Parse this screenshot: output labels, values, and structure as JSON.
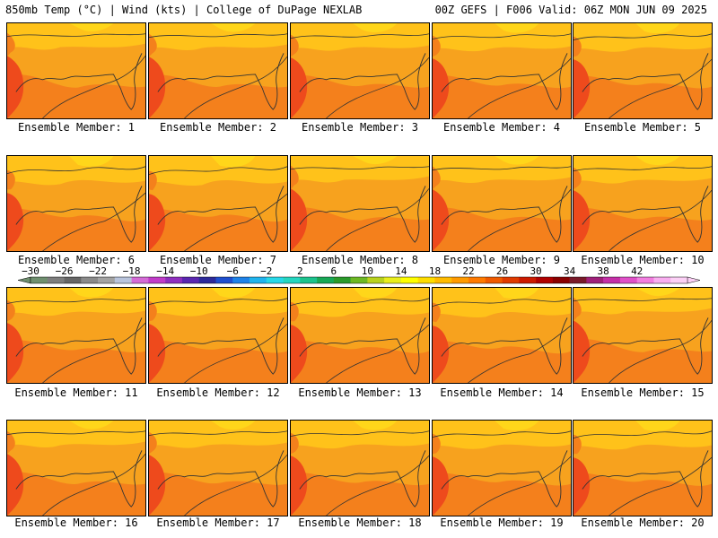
{
  "header": {
    "left": "850mb Temp (°C) | Wind (kts) | College of DuPage NEXLAB",
    "right": "00Z GEFS | F006 Valid: 06Z MON JUN 09 2025"
  },
  "caption_prefix": "Ensemble Member: ",
  "members": [
    {
      "label": "Ensemble Member: 1"
    },
    {
      "label": "Ensemble Member: 2"
    },
    {
      "label": "Ensemble Member: 3"
    },
    {
      "label": "Ensemble Member: 4"
    },
    {
      "label": "Ensemble Member: 5"
    },
    {
      "label": "Ensemble Member: 6"
    },
    {
      "label": "Ensemble Member: 7"
    },
    {
      "label": "Ensemble Member: 8"
    },
    {
      "label": "Ensemble Member: 9"
    },
    {
      "label": "Ensemble Member: 10"
    },
    {
      "label": "Ensemble Member: 11"
    },
    {
      "label": "Ensemble Member: 12"
    },
    {
      "label": "Ensemble Member: 13"
    },
    {
      "label": "Ensemble Member: 14"
    },
    {
      "label": "Ensemble Member: 15"
    },
    {
      "label": "Ensemble Member: 16"
    },
    {
      "label": "Ensemble Member: 17"
    },
    {
      "label": "Ensemble Member: 18"
    },
    {
      "label": "Ensemble Member: 19"
    },
    {
      "label": "Ensemble Member: 20"
    }
  ],
  "colorbar": {
    "labels": [
      "−30",
      "−26",
      "−22",
      "−18",
      "−14",
      "−10",
      "−6",
      "−2",
      "2",
      "6",
      "10",
      "14",
      "18",
      "22",
      "26",
      "30",
      "34",
      "38",
      "42"
    ],
    "colors": [
      "#6f8f6f",
      "#7d7d7d",
      "#666666",
      "#8a8a8a",
      "#a3a3a3",
      "#b9c4dc",
      "#d46bd6",
      "#c13cc9",
      "#8f2fbf",
      "#5a27b0",
      "#2d2a9a",
      "#1f4fcf",
      "#1e82e8",
      "#20b4ee",
      "#27d8e8",
      "#25d6c0",
      "#1cc38d",
      "#18a856",
      "#2b9a2b",
      "#6cb824",
      "#b9d21d",
      "#e9ee1c",
      "#ffff00",
      "#ffdd00",
      "#ffbb00",
      "#ff9a00",
      "#ff7a00",
      "#f05a00",
      "#e03a00",
      "#cc1a00",
      "#b00000",
      "#8a0000",
      "#7a1a2a",
      "#a0207a",
      "#c52fa8",
      "#e050c8",
      "#f27ee0",
      "#f9aef0",
      "#fcd0f6"
    ]
  },
  "map": {
    "bg_color": "#f7a21e",
    "warm_color": "#f4801c",
    "hot_color": "#ee4a1c",
    "cool_color": "#ffc21a",
    "coolest_color": "#ffd61a",
    "line_color": "#333333"
  }
}
